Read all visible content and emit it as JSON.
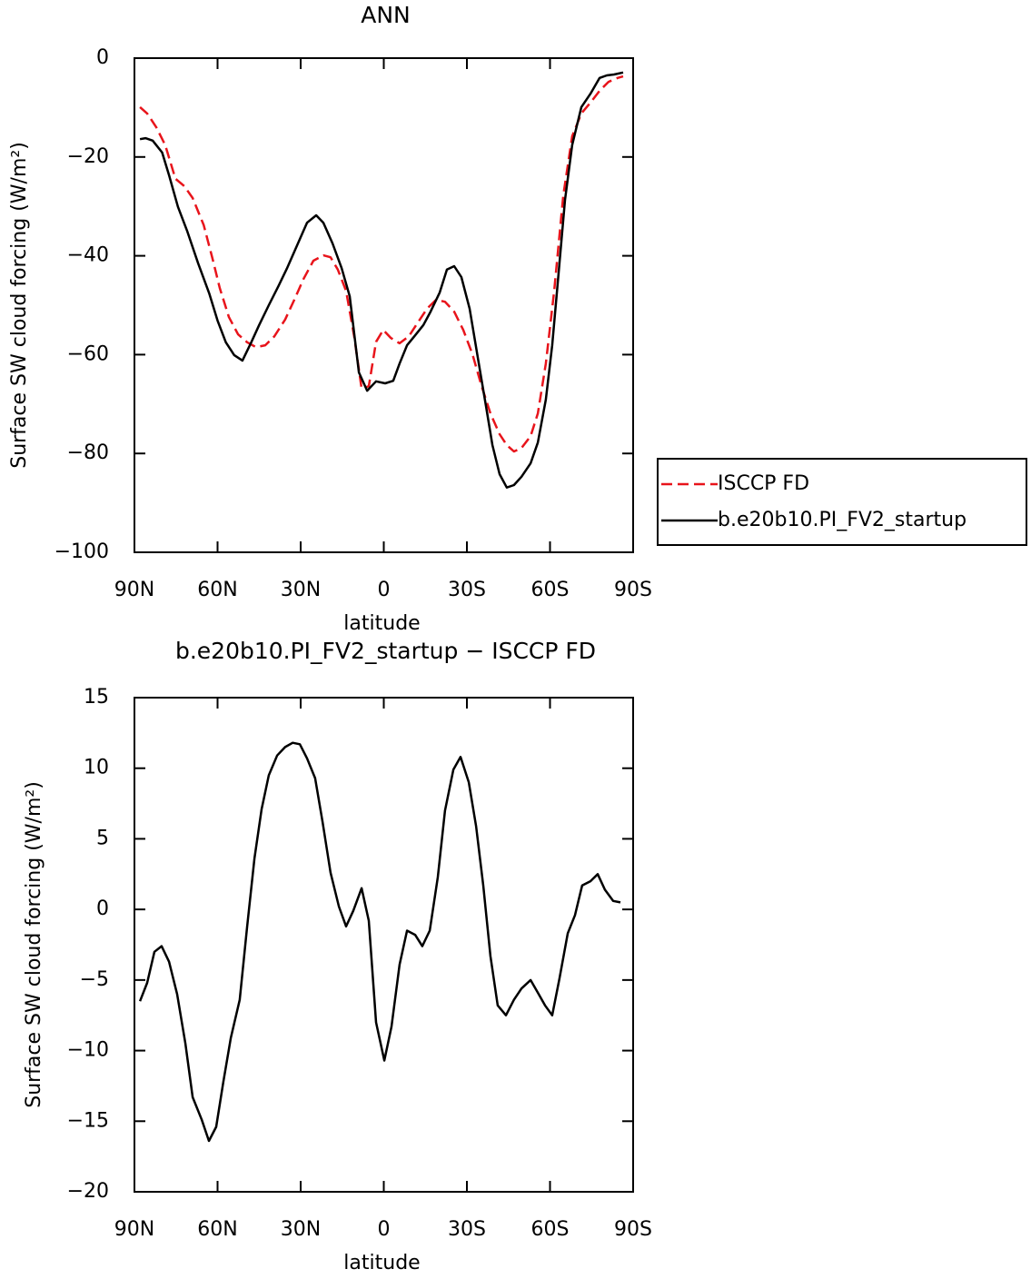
{
  "chart_data": [
    {
      "type": "line",
      "title": "ANN",
      "xlabel": "latitude",
      "ylabel": "Surface SW cloud forcing (W/m²)",
      "xlim": [
        90,
        -90
      ],
      "xticks": [
        {
          "value": 90,
          "label": "90N"
        },
        {
          "value": 60,
          "label": "60N"
        },
        {
          "value": 30,
          "label": "30N"
        },
        0,
        {
          "value": -30,
          "label": "30S"
        },
        {
          "value": -60,
          "label": "60S"
        },
        {
          "value": -90,
          "label": "90S"
        }
      ],
      "ylim": [
        -100,
        0
      ],
      "yticks": [
        {
          "value": -100,
          "label": "−100"
        },
        {
          "value": -80,
          "label": "−80"
        },
        {
          "value": -60,
          "label": "−60"
        },
        {
          "value": -40,
          "label": "−40"
        },
        {
          "value": -20,
          "label": "−20"
        },
        0
      ],
      "legend": "outside-right",
      "series": [
        {
          "name": "ISCCP FD",
          "color": "#e8141b",
          "line_style": "dashed",
          "x": [
            88,
            85.4,
            82.1,
            78.9,
            75.2,
            72,
            69,
            65,
            61.8,
            59.2,
            55.9,
            52.6,
            49.3,
            46.1,
            42.8,
            39.5,
            35.6,
            32.3,
            29,
            25.4,
            21.8,
            19.2,
            16.6,
            13.6,
            10.7,
            8,
            5.4,
            2.8,
            0.2,
            -2.5,
            -5.7,
            -9,
            -12.3,
            -15.6,
            -18.9,
            -22.1,
            -25.4,
            -28.7,
            -32,
            -35.2,
            -38.5,
            -41.8,
            -44.4,
            -47,
            -49.7,
            -53,
            -55.6,
            -58.5,
            -61.5,
            -64.8,
            -68,
            -71.3,
            -74.6,
            -77.9,
            -81.1,
            -84.4,
            -86.4
          ],
          "values": [
            -9.9,
            -11.2,
            -14,
            -17.6,
            -24.4,
            -25.9,
            -28.3,
            -33.8,
            -40.6,
            -46.5,
            -52.4,
            -55.9,
            -57.5,
            -58.5,
            -58.1,
            -56.3,
            -52.9,
            -48.9,
            -44.7,
            -41,
            -39.9,
            -40.3,
            -42.8,
            -47.1,
            -56.3,
            -66.9,
            -66.4,
            -57.4,
            -55,
            -56.6,
            -57.7,
            -56.3,
            -53.5,
            -50.7,
            -48.9,
            -49.3,
            -51.3,
            -55,
            -59.9,
            -66.2,
            -71.9,
            -76.1,
            -78.3,
            -79.6,
            -78.9,
            -76.5,
            -71.9,
            -61.8,
            -47.1,
            -27.8,
            -15.8,
            -11.2,
            -9,
            -6.6,
            -4.8,
            -4,
            -3.7
          ]
        },
        {
          "name": "b.e20b10.PI_FV2_startup",
          "color": "#000000",
          "line_style": "solid",
          "x": [
            88,
            86,
            83.4,
            80,
            77.5,
            74.3,
            71,
            67,
            63,
            60,
            57,
            54,
            51,
            48,
            45,
            41.5,
            38,
            35,
            31.3,
            27.7,
            24.4,
            21.8,
            18.5,
            15.2,
            12.3,
            9,
            6,
            2.8,
            -0.5,
            -3.4,
            -5.7,
            -8.4,
            -11,
            -14.3,
            -16.9,
            -20.2,
            -22.8,
            -25.4,
            -28,
            -31,
            -34,
            -36.9,
            -39.2,
            -41.8,
            -44.4,
            -47,
            -49.7,
            -53,
            -55.6,
            -58.5,
            -60.8,
            -63.1,
            -65.4,
            -68,
            -71.3,
            -74.6,
            -77.9,
            -80.5,
            -83.1,
            -86.4
          ],
          "values": [
            -16.4,
            -16.2,
            -16.7,
            -19.1,
            -23.7,
            -30.1,
            -34.9,
            -41.5,
            -47.6,
            -53.1,
            -57.5,
            -60.1,
            -61.2,
            -57.7,
            -54,
            -50,
            -46.1,
            -42.6,
            -37.9,
            -33.3,
            -31.8,
            -33.3,
            -37.5,
            -42.5,
            -48.2,
            -63.6,
            -67.3,
            -65.4,
            -65.8,
            -65.3,
            -61.8,
            -58.1,
            -56.3,
            -54,
            -51.3,
            -47.4,
            -42.8,
            -42.1,
            -44.3,
            -50.7,
            -60.8,
            -70.4,
            -78.3,
            -84.2,
            -86.9,
            -86.4,
            -84.7,
            -82,
            -77.8,
            -69.1,
            -58.1,
            -43.4,
            -28.7,
            -17.6,
            -9.9,
            -7.2,
            -4,
            -3.5,
            -3.3,
            -2.9
          ]
        }
      ]
    },
    {
      "type": "line",
      "title": "b.e20b10.PI_FV2_startup − ISCCP FD",
      "xlabel": "latitude",
      "ylabel": "Surface SW cloud forcing (W/m²)",
      "xlim": [
        90,
        -90
      ],
      "xticks": [
        {
          "value": 90,
          "label": "90N"
        },
        {
          "value": 60,
          "label": "60N"
        },
        {
          "value": 30,
          "label": "30N"
        },
        0,
        {
          "value": -30,
          "label": "30S"
        },
        {
          "value": -60,
          "label": "60S"
        },
        {
          "value": -90,
          "label": "90S"
        }
      ],
      "ylim": [
        -20,
        15
      ],
      "yticks": [
        {
          "value": -20,
          "label": "−20"
        },
        {
          "value": -15,
          "label": "−15"
        },
        {
          "value": -10,
          "label": "−10"
        },
        {
          "value": -5,
          "label": "−5"
        },
        0,
        5,
        10,
        15
      ],
      "series": [
        {
          "color": "#000000",
          "line_style": "solid",
          "x": [
            88,
            85.4,
            82.8,
            80.2,
            77.5,
            74.6,
            71.6,
            69,
            65.7,
            63.1,
            60.5,
            57.9,
            55.2,
            52,
            49.3,
            46.7,
            44.1,
            41.5,
            38.5,
            35.6,
            32.9,
            30.3,
            27.7,
            24.8,
            22.1,
            19.2,
            16.2,
            13.6,
            11,
            8,
            5.4,
            2.8,
            -0.2,
            -2.8,
            -5.7,
            -8.4,
            -11.3,
            -13.9,
            -16.6,
            -19.5,
            -22.1,
            -25.1,
            -27.7,
            -30.7,
            -33.3,
            -35.9,
            -38.5,
            -41.1,
            -44.1,
            -47,
            -49.7,
            -53,
            -55.9,
            -58.2,
            -60.8,
            -63.4,
            -66.4,
            -69,
            -71.6,
            -74.6,
            -77.2,
            -79.8,
            -82.8,
            -85.4
          ],
          "values": [
            -6.5,
            -5.2,
            -3,
            -2.6,
            -3.7,
            -6,
            -9.5,
            -13.3,
            -14.9,
            -16.4,
            -15.4,
            -12.2,
            -9.1,
            -6.4,
            -1.2,
            3.6,
            7.1,
            9.5,
            10.9,
            11.5,
            11.8,
            11.7,
            10.7,
            9.3,
            6.2,
            2.6,
            0.2,
            -1.2,
            -0.1,
            1.5,
            -0.8,
            -8,
            -10.7,
            -8.3,
            -3.9,
            -1.5,
            -1.8,
            -2.6,
            -1.5,
            2.3,
            7,
            9.9,
            10.8,
            9,
            5.9,
            1.7,
            -3.3,
            -6.8,
            -7.5,
            -6.4,
            -5.6,
            -5,
            -6,
            -6.8,
            -7.5,
            -4.9,
            -1.7,
            -0.4,
            1.7,
            2,
            2.5,
            1.4,
            0.6,
            0.5
          ]
        }
      ]
    }
  ]
}
